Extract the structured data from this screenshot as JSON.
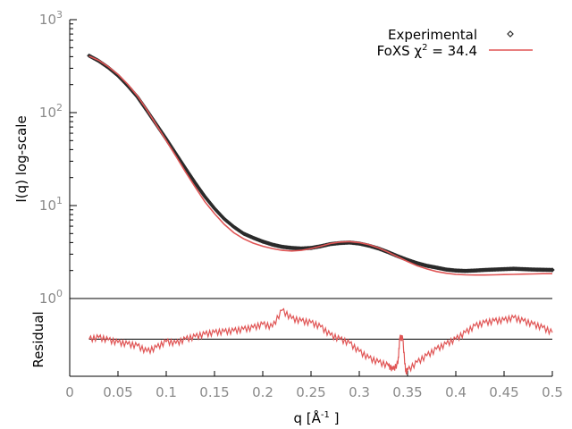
{
  "chart_data": [
    {
      "type": "line",
      "panel": "main",
      "title": "",
      "ylabel": "I(q) log-scale",
      "xlabel": "q [Å⁻¹]",
      "xlabel_prefix": "q [Å",
      "xlabel_sup": "-1",
      "xlabel_suffix": " ]",
      "y_scale": "log",
      "xlim": [
        0,
        0.5
      ],
      "ylim": [
        1,
        1000
      ],
      "y_ticks": [
        {
          "value": 1,
          "base": "10",
          "exp": "0"
        },
        {
          "value": 10,
          "base": "10",
          "exp": "1"
        },
        {
          "value": 100,
          "base": "10",
          "exp": "2"
        },
        {
          "value": 1000,
          "base": "10",
          "exp": "3"
        }
      ],
      "x_ticks": [
        {
          "value": 0,
          "label": "0"
        },
        {
          "value": 0.05,
          "label": "0.05"
        },
        {
          "value": 0.1,
          "label": "0.1"
        },
        {
          "value": 0.15,
          "label": "0.15"
        },
        {
          "value": 0.2,
          "label": "0.2"
        },
        {
          "value": 0.25,
          "label": "0.25"
        },
        {
          "value": 0.3,
          "label": "0.3"
        },
        {
          "value": 0.35,
          "label": "0.35"
        },
        {
          "value": 0.4,
          "label": "0.4"
        },
        {
          "value": 0.45,
          "label": "0.45"
        },
        {
          "value": 0.5,
          "label": "0.5"
        }
      ],
      "grid": false,
      "legend_position": "top-right",
      "series": [
        {
          "name": "Experimental",
          "legend_label": "Experimental",
          "color": "#2b2b2b",
          "style": "points",
          "x": [
            0.02,
            0.03,
            0.04,
            0.05,
            0.06,
            0.07,
            0.08,
            0.09,
            0.1,
            0.11,
            0.12,
            0.13,
            0.14,
            0.15,
            0.16,
            0.17,
            0.18,
            0.19,
            0.2,
            0.21,
            0.22,
            0.23,
            0.24,
            0.25,
            0.26,
            0.27,
            0.28,
            0.29,
            0.3,
            0.31,
            0.32,
            0.33,
            0.34,
            0.35,
            0.36,
            0.37,
            0.38,
            0.39,
            0.4,
            0.41,
            0.42,
            0.43,
            0.44,
            0.45,
            0.46,
            0.47,
            0.48,
            0.49,
            0.5
          ],
          "y": [
            410,
            360,
            305,
            250,
            195,
            148,
            105,
            74,
            52,
            36,
            25,
            17.5,
            12.5,
            9.3,
            7.2,
            5.9,
            5.0,
            4.5,
            4.1,
            3.8,
            3.6,
            3.5,
            3.45,
            3.5,
            3.65,
            3.85,
            3.95,
            4.0,
            3.9,
            3.7,
            3.45,
            3.15,
            2.85,
            2.6,
            2.4,
            2.25,
            2.15,
            2.05,
            2.0,
            1.98,
            2.0,
            2.03,
            2.05,
            2.07,
            2.09,
            2.07,
            2.05,
            2.04,
            2.03
          ]
        },
        {
          "name": "FoXS",
          "legend_label_prefix": "FoXS χ",
          "legend_label_sup": "2",
          "legend_label_suffix": " = 34.4",
          "chi2": 34.4,
          "color": "#e05555",
          "style": "line",
          "x": [
            0.02,
            0.03,
            0.04,
            0.05,
            0.06,
            0.07,
            0.08,
            0.09,
            0.1,
            0.11,
            0.12,
            0.13,
            0.14,
            0.15,
            0.16,
            0.17,
            0.18,
            0.19,
            0.2,
            0.21,
            0.22,
            0.23,
            0.24,
            0.25,
            0.26,
            0.27,
            0.28,
            0.29,
            0.3,
            0.31,
            0.32,
            0.33,
            0.34,
            0.35,
            0.36,
            0.37,
            0.38,
            0.39,
            0.4,
            0.41,
            0.42,
            0.43,
            0.44,
            0.45,
            0.46,
            0.47,
            0.48,
            0.49,
            0.5
          ],
          "y": [
            405,
            365,
            312,
            258,
            202,
            152,
            107,
            73,
            50,
            34,
            23,
            15.8,
            11.0,
            8.2,
            6.3,
            5.1,
            4.4,
            3.95,
            3.65,
            3.45,
            3.3,
            3.25,
            3.3,
            3.45,
            3.65,
            3.9,
            4.05,
            4.1,
            4.0,
            3.8,
            3.5,
            3.15,
            2.8,
            2.5,
            2.25,
            2.08,
            1.95,
            1.87,
            1.82,
            1.8,
            1.79,
            1.79,
            1.8,
            1.81,
            1.82,
            1.83,
            1.84,
            1.85,
            1.85
          ]
        }
      ]
    },
    {
      "type": "line",
      "panel": "residual",
      "ylabel": "Residual",
      "xlim": [
        0,
        0.5
      ],
      "ylim": [
        -4.5,
        4.5
      ],
      "zero_line_color": "#000000",
      "series": [
        {
          "name": "",
          "color": "#e05555",
          "style": "line",
          "x": [
            0.02,
            0.03,
            0.04,
            0.05,
            0.06,
            0.07,
            0.08,
            0.09,
            0.1,
            0.11,
            0.12,
            0.13,
            0.14,
            0.15,
            0.16,
            0.17,
            0.18,
            0.19,
            0.2,
            0.21,
            0.22,
            0.23,
            0.24,
            0.25,
            0.26,
            0.27,
            0.28,
            0.29,
            0.3,
            0.31,
            0.32,
            0.33,
            0.335,
            0.34,
            0.342,
            0.345,
            0.348,
            0.35,
            0.36,
            0.37,
            0.38,
            0.39,
            0.4,
            0.41,
            0.42,
            0.43,
            0.44,
            0.45,
            0.46,
            0.47,
            0.48,
            0.49,
            0.5
          ],
          "y": [
            0.0,
            0.2,
            -0.1,
            -0.4,
            -0.6,
            -0.8,
            -1.5,
            -1.0,
            -0.3,
            -0.5,
            0.0,
            0.3,
            0.6,
            0.8,
            0.9,
            1.0,
            1.2,
            1.4,
            1.8,
            1.5,
            3.5,
            2.5,
            2.2,
            2.0,
            1.5,
            0.5,
            0.0,
            -0.5,
            -1.5,
            -2.3,
            -2.8,
            -3.2,
            -3.7,
            -3.0,
            0.2,
            0.1,
            -4.0,
            -3.8,
            -2.8,
            -2.0,
            -1.2,
            -0.6,
            0.0,
            0.8,
            1.6,
            2.0,
            2.2,
            2.3,
            2.6,
            2.2,
            1.8,
            1.4,
            0.8
          ]
        }
      ]
    }
  ]
}
